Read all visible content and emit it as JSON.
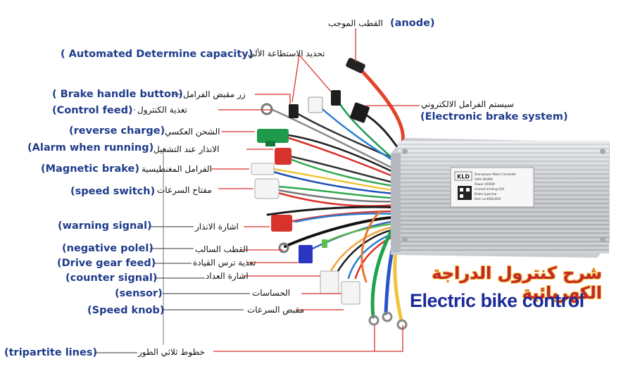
{
  "title_ar": "شرح كنترول الدراجة الكهربائية",
  "title_en": "Electric bike control",
  "controller": {
    "label_lines": [
      "Brainpower Motor Controller",
      "Volts:36/48V",
      "Power:1000W",
      "Current limiting:35A",
      "Brake type:low",
      "Item no:KSDLM35"
    ],
    "brand": "KLD"
  },
  "callouts": {
    "anode": {
      "en": "(anode)",
      "ar": "القطب الموجب"
    },
    "capacity": {
      "en": "( Automated Determine capacity)",
      "ar": "تحديد الاستطاعة الألي"
    },
    "brake_handle": {
      "en": "( Brake handle button)",
      "ar": "زر مقبض الفرامل"
    },
    "control_feed": {
      "en": "(Control feed)",
      "ar": "تغذية الكنترول"
    },
    "electronic_brake": {
      "en": "(Electronic brake system)",
      "ar": "سيستم الفرامل الالكتروني"
    },
    "reverse_charge": {
      "en": "(reverse charge)",
      "ar": "الشحن العكسي"
    },
    "alarm": {
      "en": "(Alarm when running)",
      "ar": "الانذار عند التشغيل"
    },
    "magnetic_brake": {
      "en": "(Magnetic brake)",
      "ar": "الفرامل المغنطيسية"
    },
    "speed_switch": {
      "en": "(speed switch)",
      "ar": "مفتاح السرعات"
    },
    "warning_signal": {
      "en": "(warning signal)",
      "ar": "اشارة الانذار"
    },
    "negative_pole": {
      "en": "(negative polel)",
      "ar": "القطب السالب"
    },
    "drive_gear": {
      "en": "(Drive gear feed)",
      "ar": "تغذية ترس القيادة"
    },
    "counter_signal": {
      "en": "(counter signal)",
      "ar": "اشارة العداد"
    },
    "sensor": {
      "en": "(sensor)",
      "ar": "الحساسات"
    },
    "speed_knob": {
      "en": "(Speed knob)",
      "ar": "مقبض السرعات"
    },
    "tripartite": {
      "en": "(tripartite lines)",
      "ar": "خطوط ثلاثي الطور"
    }
  },
  "colors": {
    "label_blue": "#1f3c8c",
    "pointer_red": "#d8322c",
    "title_red": "#c4262d",
    "title_blue": "#1b2a9a",
    "housing": "#dcdee2"
  }
}
